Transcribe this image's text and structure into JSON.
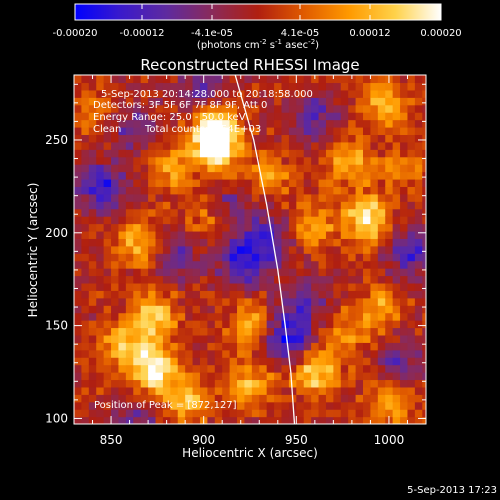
{
  "chart_data": {
    "type": "heatmap",
    "title": "Reconstructed RHESSI Image",
    "xlabel": "Heliocentric X (arcsec)",
    "ylabel": "Heliocentric Y (arcsec)",
    "xlim": [
      830,
      1020
    ],
    "ylim": [
      97,
      285
    ],
    "xticks": [
      850,
      900,
      950,
      1000
    ],
    "yticks": [
      100,
      150,
      200,
      250
    ],
    "colorbar": {
      "ticks": [
        "-0.00020",
        "-0.00012",
        "-4.1e-05",
        "4.1e-05",
        "0.00012",
        "0.00020"
      ],
      "unit_prefix": "(photons cm",
      "unit_exp1": "-2",
      "unit_mid": " s",
      "unit_exp2": "-1",
      "unit_mid2": " asec",
      "unit_exp3": "-2",
      "unit_suffix": ")",
      "range": [
        -0.0002,
        0.0002
      ],
      "colors": [
        "#0000ff",
        "#3a1acb",
        "#5e2a9f",
        "#8a2a5a",
        "#b01f10",
        "#e05a00",
        "#ff9a00",
        "#ffd24a",
        "#ffffff"
      ]
    },
    "annotations": {
      "line1": "5-Sep-2013 20:14:28.000 to 20:18:58.000",
      "line2": "Detectors: 3F 5F 6F 7F 8F 9F, Att 0",
      "line3": "Energy Range: 25.0 - 50.0 keV",
      "line4_left": "Clean",
      "line4_right": "Total counts: 5.54E+03",
      "peak": "Position of Peak = [872,127]"
    },
    "peak": [
      872,
      127
    ],
    "limb_curve": [
      [
        917,
        285
      ],
      [
        927,
        250
      ],
      [
        934,
        215
      ],
      [
        940,
        180
      ],
      [
        944,
        150
      ],
      [
        947,
        125
      ],
      [
        949,
        97
      ]
    ],
    "blobs": [
      {
        "x": 905,
        "y": 257,
        "v": 1.0
      },
      {
        "x": 908,
        "y": 245,
        "v": 0.8
      },
      {
        "x": 882,
        "y": 235,
        "v": 0.55
      },
      {
        "x": 865,
        "y": 195,
        "v": 0.6
      },
      {
        "x": 872,
        "y": 155,
        "v": 0.8
      },
      {
        "x": 872,
        "y": 127,
        "v": 0.95
      },
      {
        "x": 855,
        "y": 140,
        "v": 0.6
      },
      {
        "x": 890,
        "y": 110,
        "v": 0.7
      },
      {
        "x": 925,
        "y": 150,
        "v": 0.55
      },
      {
        "x": 925,
        "y": 118,
        "v": 0.6
      },
      {
        "x": 958,
        "y": 205,
        "v": 0.55
      },
      {
        "x": 960,
        "y": 125,
        "v": 0.75
      },
      {
        "x": 988,
        "y": 208,
        "v": 0.9
      },
      {
        "x": 978,
        "y": 238,
        "v": 0.6
      },
      {
        "x": 998,
        "y": 270,
        "v": 0.7
      },
      {
        "x": 995,
        "y": 160,
        "v": 0.5
      },
      {
        "x": 1008,
        "y": 235,
        "v": 0.4
      },
      {
        "x": 1000,
        "y": 110,
        "v": 0.55
      },
      {
        "x": 935,
        "y": 232,
        "v": 0.45
      },
      {
        "x": 845,
        "y": 265,
        "v": 0.4
      },
      {
        "x": 978,
        "y": 145,
        "v": 0.4
      },
      {
        "x": 900,
        "y": 210,
        "v": 0.35
      },
      {
        "x": 845,
        "y": 225,
        "v": -0.75
      },
      {
        "x": 860,
        "y": 258,
        "v": -0.5
      },
      {
        "x": 922,
        "y": 185,
        "v": -0.8
      },
      {
        "x": 935,
        "y": 198,
        "v": -0.6
      },
      {
        "x": 945,
        "y": 145,
        "v": -0.85
      },
      {
        "x": 960,
        "y": 262,
        "v": -0.55
      },
      {
        "x": 955,
        "y": 165,
        "v": -0.5
      },
      {
        "x": 1012,
        "y": 190,
        "v": -0.65
      },
      {
        "x": 885,
        "y": 188,
        "v": -0.45
      },
      {
        "x": 900,
        "y": 275,
        "v": -0.5
      },
      {
        "x": 1005,
        "y": 130,
        "v": -0.5
      },
      {
        "x": 915,
        "y": 215,
        "v": -0.4
      },
      {
        "x": 865,
        "y": 100,
        "v": -0.35
      }
    ],
    "timestamp": "5-Sep-2013 17:23"
  }
}
